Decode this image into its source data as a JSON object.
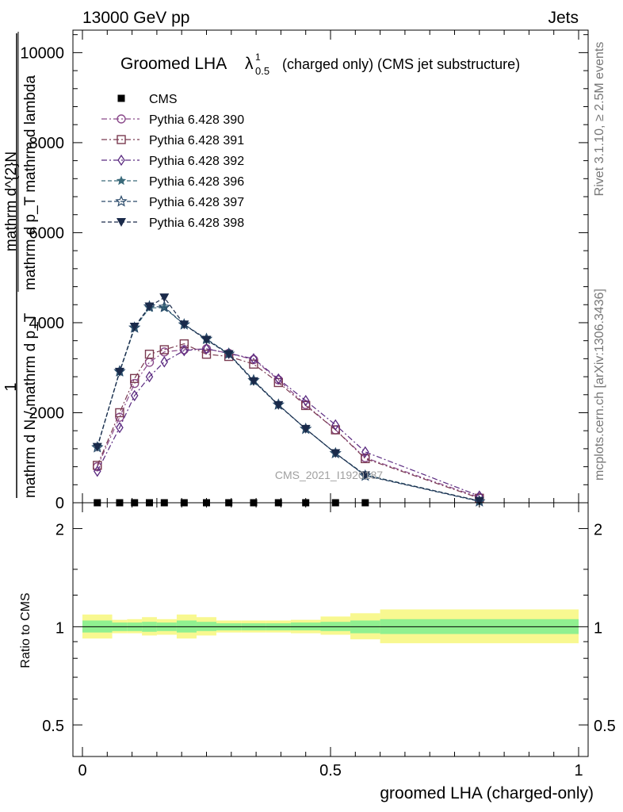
{
  "header": {
    "left": "13000 GeV pp",
    "right": "Jets"
  },
  "plot_title": {
    "main": "Groomed LHA",
    "lambda": "λ",
    "sup": "1",
    "sub": "0.5",
    "suffix": "(charged only) (CMS jet substructure)"
  },
  "side_labels": {
    "rivet": "Rivet 3.1.10, ≥ 2.5M events",
    "mcplots": "mcplots.cern.ch [arXiv:1306.3436]"
  },
  "watermark": "CMS_2021_I1920187",
  "colors": {
    "CMS": "#000000",
    "Pythia 6.428 390": "#8b4a8b",
    "Pythia 6.428 391": "#7a3a50",
    "Pythia 6.428 392": "#5a2a80",
    "Pythia 6.428 396": "#3a6a7a",
    "Pythia 6.428 397": "#2a4a6a",
    "Pythia 6.428 398": "#1a2a4a",
    "band_inner": "#90f090",
    "band_outer": "#f8f890"
  },
  "chart_data": [
    {
      "type": "line",
      "ylabel_numerator": "1",
      "ylabel_denominator": "mathrm d N / mathrm d p_T",
      "ylabel_fraction_top": "mathrm d^{2}N",
      "ylabel_fraction_bottom": "mathrm d p_T mathrm d lambda",
      "ylim": [
        0,
        10500
      ],
      "yticks": [
        0,
        2000,
        4000,
        6000,
        8000,
        10000
      ],
      "ytick_labels": [
        "0",
        "2000",
        "4000",
        "6000",
        "8000",
        "10000"
      ],
      "xlim": [
        0,
        1
      ],
      "legend_position": "top-left",
      "series": [
        {
          "name": "CMS",
          "marker": "square",
          "style": "none",
          "x": [
            0.03,
            0.075,
            0.105,
            0.135,
            0.165,
            0.205,
            0.25,
            0.295,
            0.345,
            0.395,
            0.45,
            0.51,
            0.57
          ],
          "values": [
            0,
            0,
            0,
            0,
            0,
            0,
            0,
            0,
            0,
            0,
            0,
            0,
            0
          ]
        },
        {
          "name": "Pythia 6.428 390",
          "marker": "circle",
          "style": "dashdot",
          "x": [
            0.03,
            0.075,
            0.105,
            0.135,
            0.165,
            0.205,
            0.25,
            0.295,
            0.345,
            0.395,
            0.45,
            0.51,
            0.57,
            0.8
          ],
          "values": [
            800,
            1900,
            2650,
            3120,
            3350,
            3400,
            3420,
            3320,
            3180,
            2730,
            2180,
            1620,
            1000,
            120
          ]
        },
        {
          "name": "Pythia 6.428 391",
          "marker": "square",
          "style": "dashdot",
          "x": [
            0.03,
            0.075,
            0.105,
            0.135,
            0.165,
            0.205,
            0.25,
            0.295,
            0.345,
            0.395,
            0.45,
            0.51,
            0.57,
            0.8
          ],
          "values": [
            830,
            2000,
            2760,
            3300,
            3400,
            3530,
            3300,
            3250,
            3080,
            2670,
            2160,
            1620,
            980,
            100
          ]
        },
        {
          "name": "Pythia 6.428 392",
          "marker": "diamond",
          "style": "dashdot",
          "x": [
            0.03,
            0.075,
            0.105,
            0.135,
            0.165,
            0.205,
            0.25,
            0.295,
            0.345,
            0.395,
            0.45,
            0.51,
            0.57,
            0.8
          ],
          "values": [
            700,
            1670,
            2380,
            2800,
            3130,
            3380,
            3420,
            3320,
            3200,
            2750,
            2270,
            1730,
            1130,
            150
          ]
        },
        {
          "name": "Pythia 6.428 396",
          "marker": "star",
          "style": "dashed",
          "x": [
            0.03,
            0.075,
            0.105,
            0.135,
            0.165,
            0.205,
            0.25,
            0.295,
            0.345,
            0.395,
            0.45,
            0.51,
            0.57,
            0.8
          ],
          "values": [
            1250,
            2900,
            3880,
            4330,
            4330,
            3960,
            3620,
            3300,
            2700,
            2170,
            1640,
            1100,
            620,
            40
          ]
        },
        {
          "name": "Pythia 6.428 397",
          "marker": "star-open",
          "style": "dashed",
          "x": [
            0.03,
            0.075,
            0.105,
            0.135,
            0.165,
            0.205,
            0.25,
            0.295,
            0.345,
            0.395,
            0.45,
            0.51,
            0.57,
            0.8
          ],
          "values": [
            1230,
            2920,
            3890,
            4360,
            4350,
            3960,
            3640,
            3310,
            2720,
            2180,
            1640,
            1100,
            600,
            30
          ]
        },
        {
          "name": "Pythia 6.428 398",
          "marker": "triangle-down",
          "style": "dashed",
          "x": [
            0.03,
            0.075,
            0.105,
            0.135,
            0.165,
            0.205,
            0.25,
            0.295,
            0.345,
            0.395,
            0.45,
            0.51,
            0.57,
            0.8
          ],
          "values": [
            1240,
            2910,
            3910,
            4360,
            4560,
            3960,
            3620,
            3300,
            2700,
            2170,
            1640,
            1100,
            610,
            40
          ]
        }
      ]
    },
    {
      "type": "area",
      "ylabel": "Ratio to CMS",
      "xlabel": "groomed LHA (charged-only)",
      "yscale": "log",
      "ylim": [
        0.4,
        2.4
      ],
      "yticks": [
        0.5,
        1,
        2
      ],
      "ytick_labels": [
        "0.5",
        "1",
        "2"
      ],
      "xlim": [
        0,
        1
      ],
      "xticks": [
        0,
        0.5,
        1
      ],
      "xtick_labels": [
        "0",
        "0.5",
        "1"
      ],
      "bins": [
        0,
        0.06,
        0.09,
        0.12,
        0.15,
        0.19,
        0.23,
        0.27,
        0.32,
        0.37,
        0.42,
        0.48,
        0.54,
        0.6,
        1.0
      ],
      "bin_edges_drawn": [
        0.045,
        0.06,
        0.09,
        0.12,
        0.15,
        0.19,
        0.23,
        0.27,
        0.32,
        0.37,
        0.42,
        0.48,
        0.54,
        0.6,
        1.0
      ],
      "inner_band": {
        "lo": [
          0.96,
          0.97,
          0.97,
          0.965,
          0.97,
          0.96,
          0.97,
          0.975,
          0.975,
          0.975,
          0.975,
          0.97,
          0.955,
          0.95
        ],
        "hi": [
          1.045,
          1.03,
          1.03,
          1.035,
          1.03,
          1.045,
          1.035,
          1.025,
          1.025,
          1.025,
          1.03,
          1.035,
          1.045,
          1.055
        ]
      },
      "outer_band": {
        "lo": [
          0.92,
          0.955,
          0.955,
          0.94,
          0.945,
          0.92,
          0.94,
          0.96,
          0.96,
          0.96,
          0.955,
          0.945,
          0.915,
          0.89
        ],
        "hi": [
          1.09,
          1.05,
          1.055,
          1.07,
          1.055,
          1.09,
          1.07,
          1.045,
          1.045,
          1.045,
          1.05,
          1.075,
          1.1,
          1.13
        ]
      },
      "reference_line": 1
    }
  ]
}
